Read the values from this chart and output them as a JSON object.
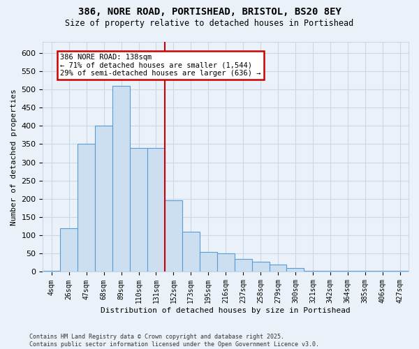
{
  "title_line1": "386, NORE ROAD, PORTISHEAD, BRISTOL, BS20 8EY",
  "title_line2": "Size of property relative to detached houses in Portishead",
  "xlabel": "Distribution of detached houses by size in Portishead",
  "ylabel": "Number of detached properties",
  "footnote": "Contains HM Land Registry data © Crown copyright and database right 2025.\nContains public sector information licensed under the Open Government Licence v3.0.",
  "bin_labels": [
    "4sqm",
    "26sqm",
    "47sqm",
    "68sqm",
    "89sqm",
    "110sqm",
    "131sqm",
    "152sqm",
    "173sqm",
    "195sqm",
    "216sqm",
    "237sqm",
    "258sqm",
    "279sqm",
    "300sqm",
    "321sqm",
    "342sqm",
    "364sqm",
    "385sqm",
    "406sqm",
    "427sqm"
  ],
  "bar_values": [
    3,
    120,
    350,
    400,
    510,
    340,
    340,
    195,
    110,
    55,
    50,
    35,
    27,
    20,
    10,
    3,
    3,
    3,
    3,
    3,
    2
  ],
  "bar_color_fill": "#ccdff0",
  "bar_color_edge": "#5b9bd5",
  "marker_label_line1": "386 NORE ROAD: 138sqm",
  "marker_label_line2": "← 71% of detached houses are smaller (1,544)",
  "marker_label_line3": "29% of semi-detached houses are larger (636) →",
  "annotation_box_color": "#ffffff",
  "annotation_box_edge": "#cc0000",
  "vline_color": "#cc0000",
  "grid_color": "#c8d8e8",
  "bg_color": "#eaf1f8",
  "ylim": [
    0,
    630
  ],
  "yticks": [
    0,
    50,
    100,
    150,
    200,
    250,
    300,
    350,
    400,
    450,
    500,
    550,
    600
  ]
}
